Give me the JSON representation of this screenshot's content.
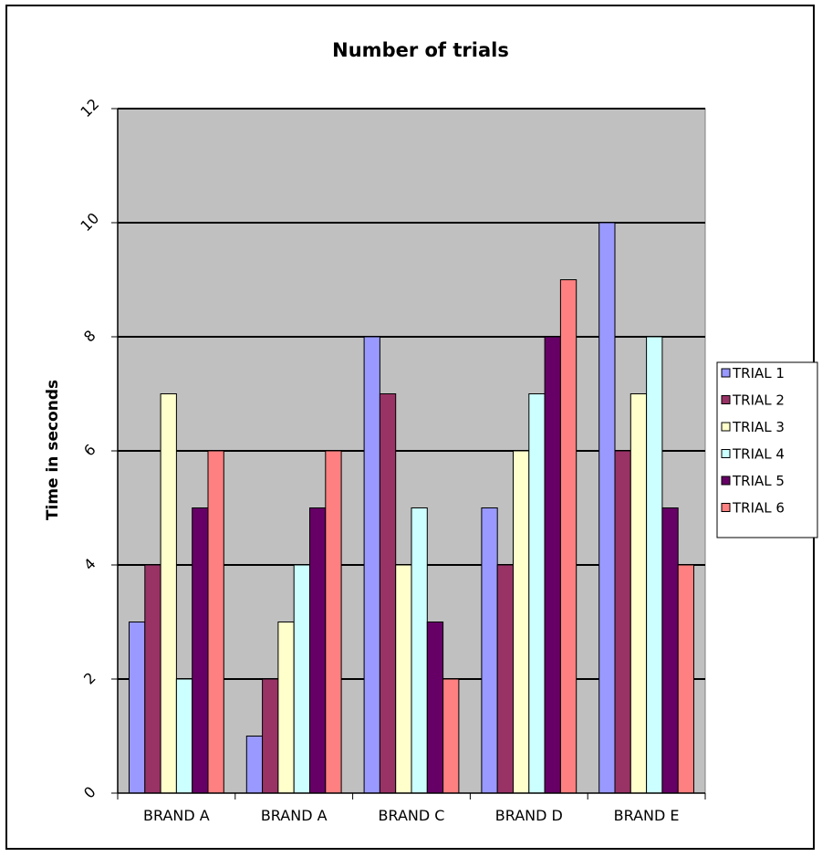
{
  "chart_data": {
    "type": "bar",
    "title": "Number of trials",
    "xlabel": "",
    "ylabel": "Time in seconds",
    "categories": [
      "BRAND A",
      "BRAND A",
      "BRAND C",
      "BRAND D",
      "BRAND E"
    ],
    "ylim": [
      0,
      12
    ],
    "yticks": [
      "0",
      "2",
      "4",
      "6",
      "8",
      "10",
      "12"
    ],
    "grid": true,
    "legend_position": "right",
    "plot_background": "#c0c0c0",
    "series": [
      {
        "name": "TRIAL 1",
        "color": "#9999ff",
        "values": [
          3,
          1,
          8,
          5,
          10
        ]
      },
      {
        "name": "TRIAL 2",
        "color": "#993366",
        "values": [
          4,
          2,
          7,
          4,
          6
        ]
      },
      {
        "name": "TRIAL 3",
        "color": "#ffffcc",
        "values": [
          7,
          3,
          4,
          6,
          7
        ]
      },
      {
        "name": "TRIAL 4",
        "color": "#ccffff",
        "values": [
          2,
          4,
          5,
          7,
          8
        ]
      },
      {
        "name": "TRIAL 5",
        "color": "#660066",
        "values": [
          5,
          5,
          3,
          8,
          5
        ]
      },
      {
        "name": "TRIAL 6",
        "color": "#ff8080",
        "values": [
          6,
          6,
          2,
          9,
          4
        ]
      }
    ]
  }
}
